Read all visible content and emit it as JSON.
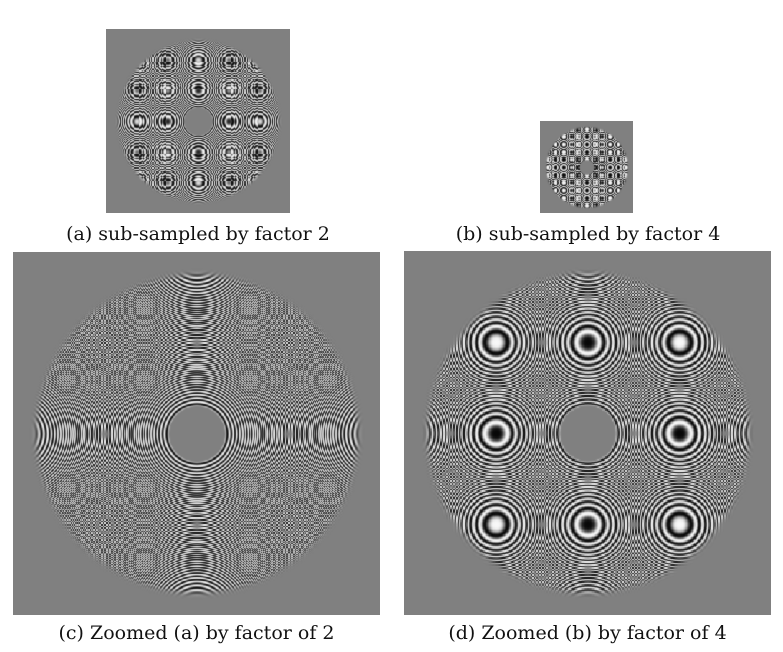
{
  "figure": {
    "panels": [
      {
        "id": "a",
        "caption": "(a) sub-sampled by factor 2",
        "subsample": 2,
        "zoom": 1
      },
      {
        "id": "b",
        "caption": "(b) sub-sampled by factor 4",
        "subsample": 4,
        "zoom": 1
      },
      {
        "id": "c",
        "caption": "(c) Zoomed (a) by factor of 2",
        "subsample": 2,
        "zoom": 2
      },
      {
        "id": "d",
        "caption": "(d) Zoomed (b) by factor of 4",
        "subsample": 4,
        "zoom": 4
      }
    ],
    "background_gray": "#808080"
  }
}
